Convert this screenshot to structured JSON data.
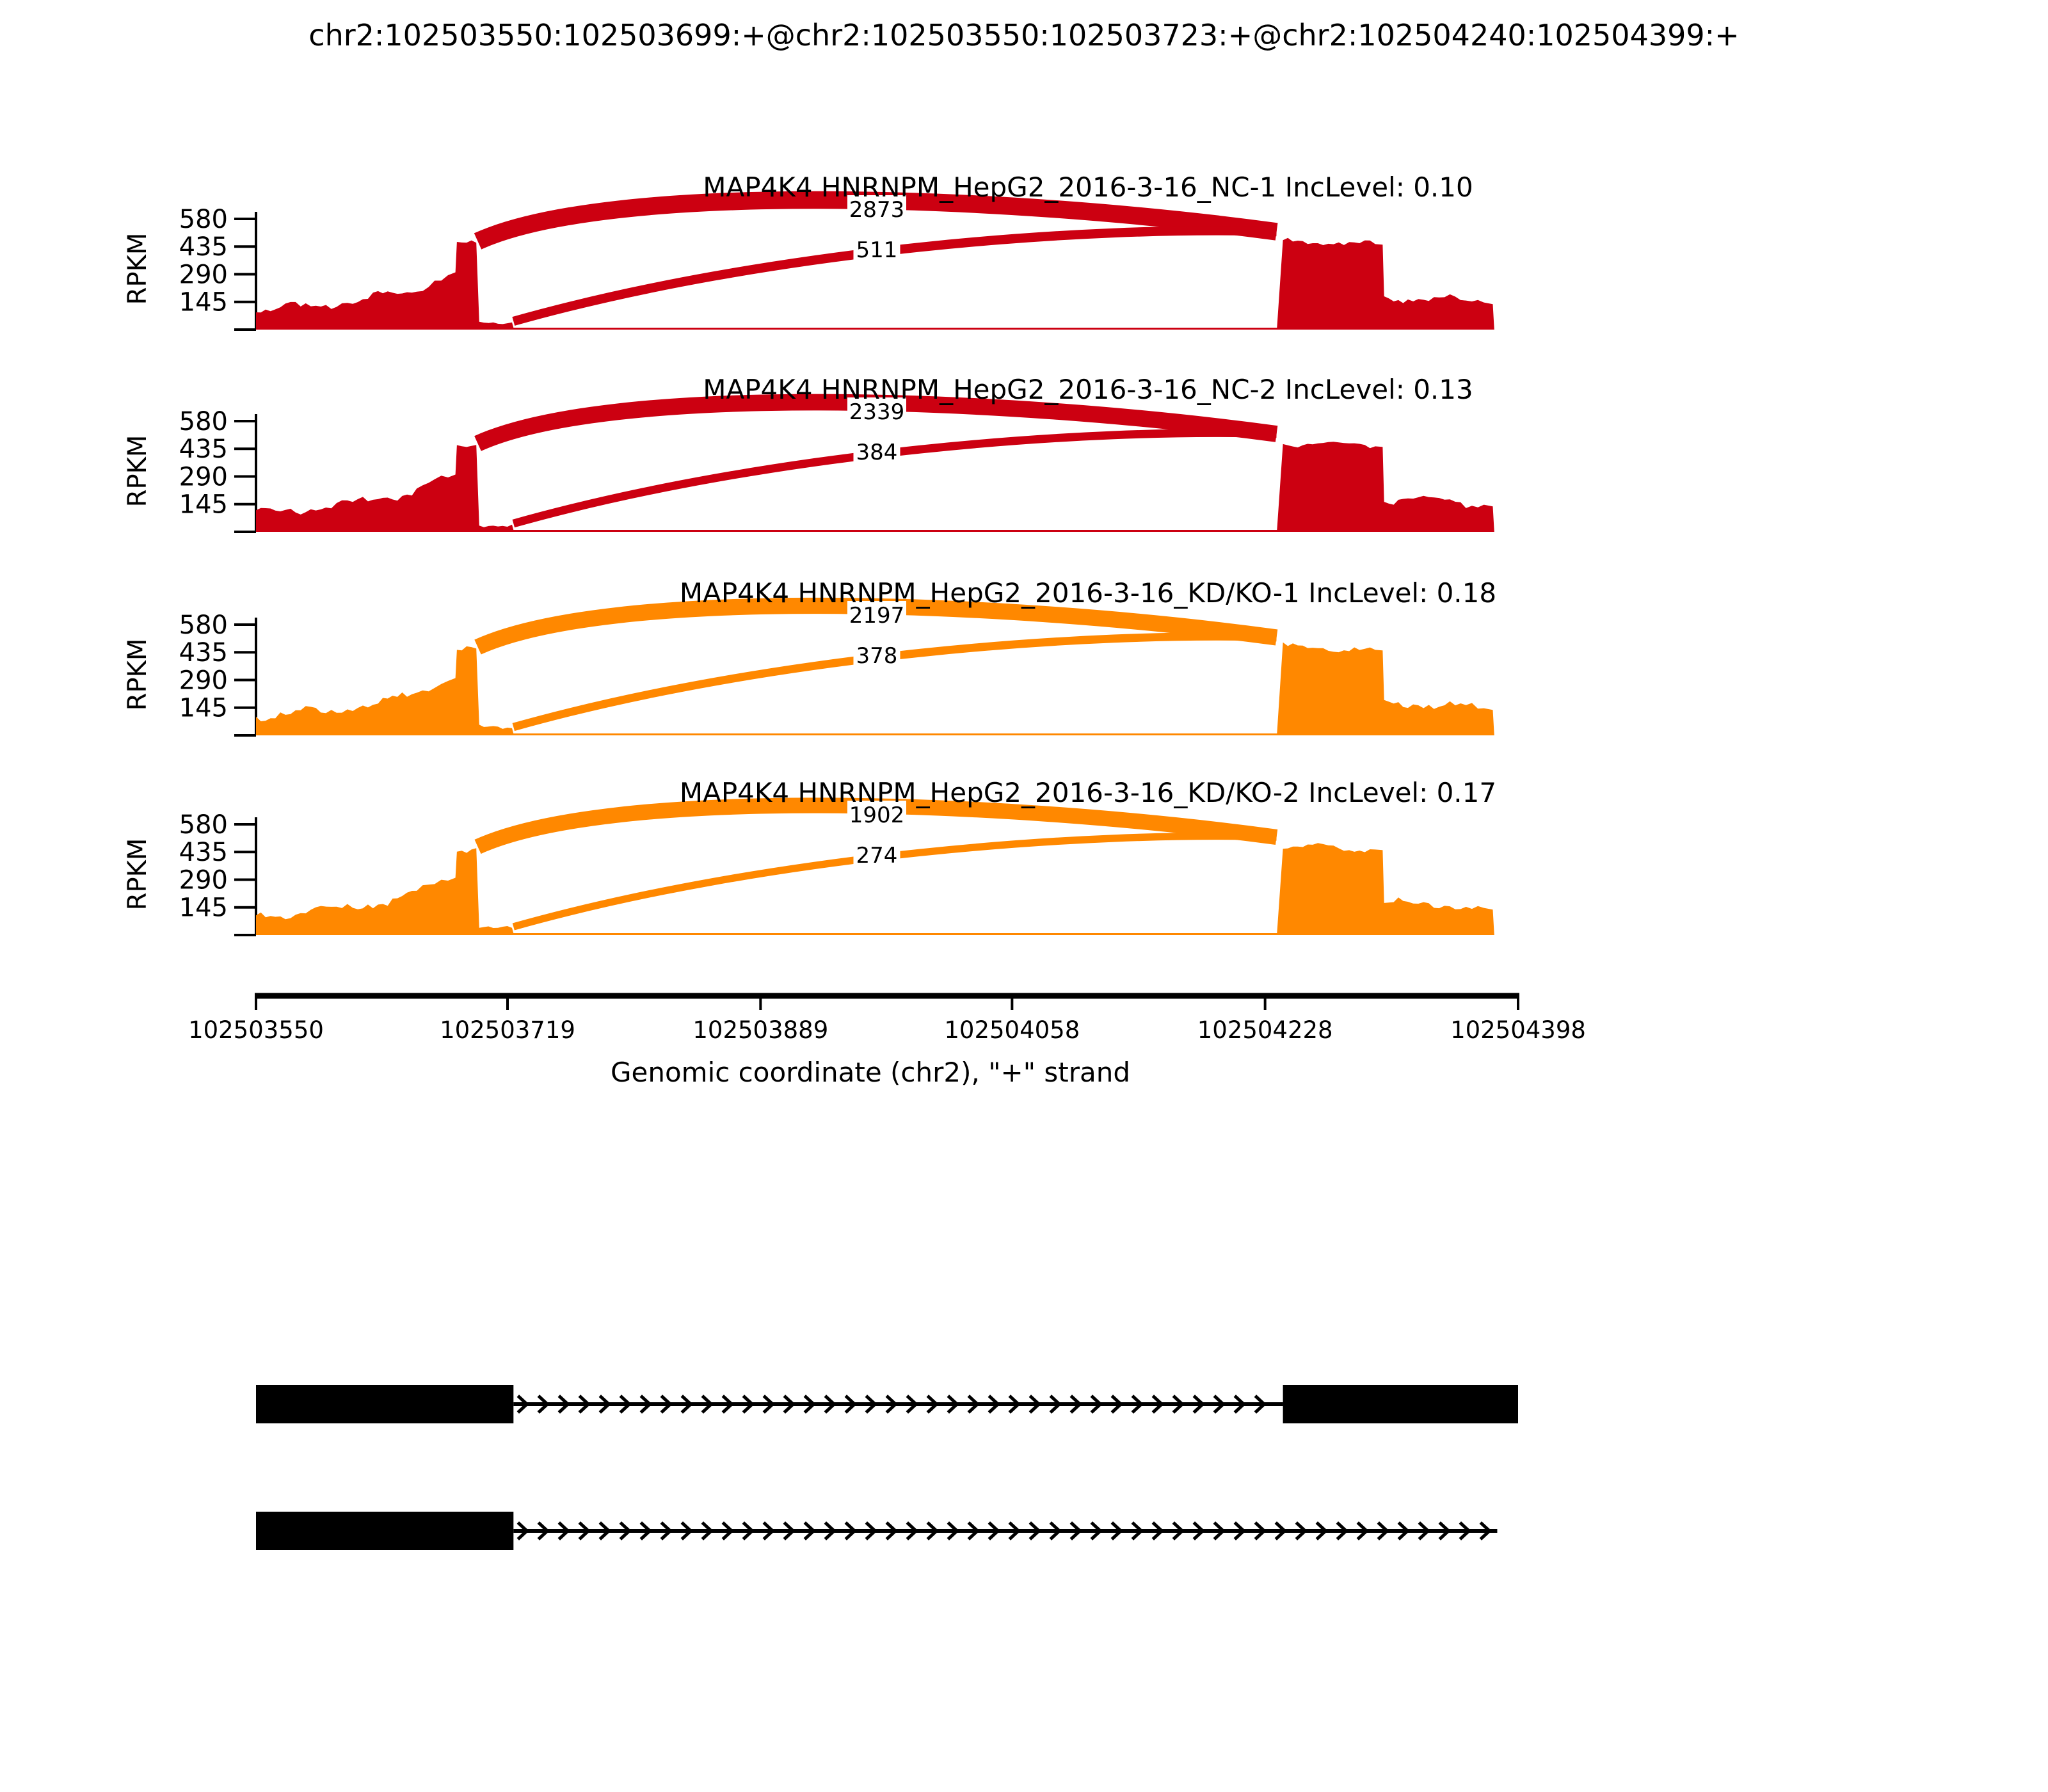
{
  "figure_title": "chr2:102503550:102503699:+@chr2:102503550:102503723:+@chr2:102504240:102504399:+",
  "y_axis": {
    "label": "RPKM",
    "ticks": [
      145,
      290,
      435,
      580
    ]
  },
  "x_axis": {
    "label": "Genomic coordinate (chr2), \"+\" strand",
    "ticks": [
      102503550,
      102503719,
      102503889,
      102504058,
      102504228,
      102504398
    ]
  },
  "colors": {
    "nc_red": "#CC0011",
    "kd_orange": "#FF8800",
    "exon_black": "#000000"
  },
  "chart_data": {
    "type": "sashimi",
    "region": {
      "chrom": "chr2",
      "strand": "+",
      "start": 102503550,
      "end": 102504398
    },
    "rpkm_ticks": [
      145,
      290,
      435,
      580
    ],
    "tracks": [
      {
        "label": "MAP4K4 HNRNPM_HepG2_2016-3-16_NC-1 IncLevel: 0.10",
        "sample": "MAP4K4 HNRNPM_HepG2_2016-3-16_NC-1",
        "inc_level": 0.1,
        "color": "#CC0011",
        "junctions": [
          {
            "from": 102503699,
            "to": 102504240,
            "count": 2873
          },
          {
            "from": 102503723,
            "to": 102504240,
            "count": 511
          }
        ]
      },
      {
        "label": "MAP4K4 HNRNPM_HepG2_2016-3-16_NC-2 IncLevel: 0.13",
        "sample": "MAP4K4 HNRNPM_HepG2_2016-3-16_NC-2",
        "inc_level": 0.13,
        "color": "#CC0011",
        "junctions": [
          {
            "from": 102503699,
            "to": 102504240,
            "count": 2339
          },
          {
            "from": 102503723,
            "to": 102504240,
            "count": 384
          }
        ]
      },
      {
        "label": "MAP4K4 HNRNPM_HepG2_2016-3-16_KD/KO-1 IncLevel: 0.18",
        "sample": "MAP4K4 HNRNPM_HepG2_2016-3-16_KD/KO-1",
        "inc_level": 0.18,
        "color": "#FF8800",
        "junctions": [
          {
            "from": 102503699,
            "to": 102504240,
            "count": 2197
          },
          {
            "from": 102503723,
            "to": 102504240,
            "count": 378
          }
        ]
      },
      {
        "label": "MAP4K4 HNRNPM_HepG2_2016-3-16_KD/KO-2 IncLevel: 0.17",
        "sample": "MAP4K4 HNRNPM_HepG2_2016-3-16_KD/KO-2",
        "inc_level": 0.17,
        "color": "#FF8800",
        "junctions": [
          {
            "from": 102503699,
            "to": 102504240,
            "count": 1902
          },
          {
            "from": 102503723,
            "to": 102504240,
            "count": 274
          }
        ]
      }
    ],
    "coverage_profile": [
      [
        102503550,
        100
      ],
      [
        102503563,
        108
      ],
      [
        102503580,
        118
      ],
      [
        102503597,
        132
      ],
      [
        102503615,
        148
      ],
      [
        102503632,
        170
      ],
      [
        102503645,
        192
      ],
      [
        102503658,
        222
      ],
      [
        102503670,
        258
      ],
      [
        102503679,
        285
      ],
      [
        102503684,
        300
      ],
      [
        102503685,
        445
      ],
      [
        102503698,
        455
      ],
      [
        102503700,
        38
      ],
      [
        102503722,
        38
      ],
      [
        102503723,
        6
      ],
      [
        102504236,
        6
      ],
      [
        102504240,
        465
      ],
      [
        102504260,
        462
      ],
      [
        102504281,
        452
      ],
      [
        102504302,
        448
      ],
      [
        102504307,
        445
      ],
      [
        102504308,
        168
      ],
      [
        102504324,
        165
      ],
      [
        102504345,
        160
      ],
      [
        102504363,
        150
      ],
      [
        102504375,
        142
      ],
      [
        102504381,
        133
      ],
      [
        102504382,
        0
      ]
    ],
    "isoforms": [
      {
        "exons": [
          [
            102503550,
            102503723
          ],
          [
            102504240,
            102504398
          ]
        ],
        "arrow_line": [
          102503723,
          102504240
        ]
      },
      {
        "exons": [
          [
            102503550,
            102503723
          ]
        ],
        "arrow_line": [
          102503723,
          102504384
        ]
      }
    ]
  }
}
